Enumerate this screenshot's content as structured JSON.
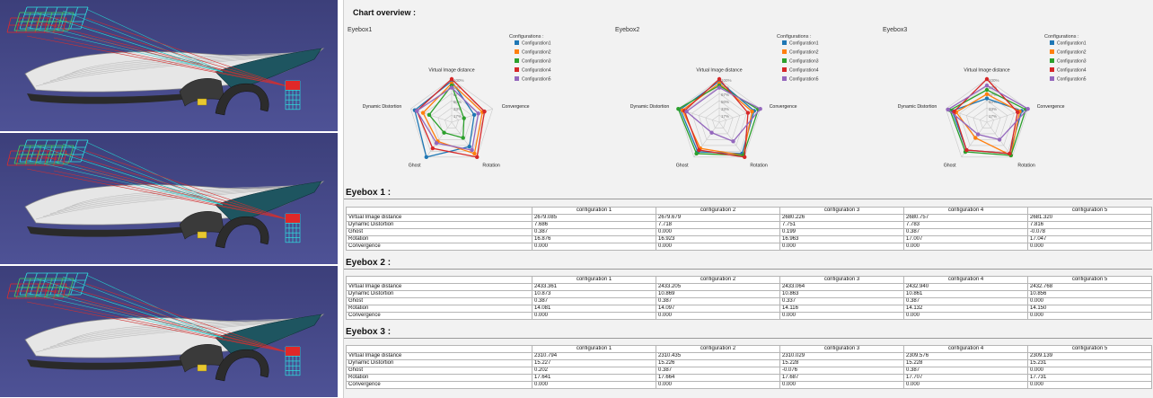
{
  "report": {
    "title": "Chart overview :",
    "config_heading": "Configurations :",
    "configurations": [
      "Configuration1",
      "Configuration2",
      "Configuration3",
      "Configuration4",
      "Configuration5"
    ],
    "axes": [
      "Virtual Image distance",
      "Convergence",
      "Rotation",
      "Ghost",
      "Dynamic Distortion"
    ],
    "ring_labels": [
      "100%",
      "83%",
      "67%",
      "50%",
      "33%",
      "17%"
    ]
  },
  "colors": {
    "series": [
      "#1f77b4",
      "#ff7f0e",
      "#2ca02c",
      "#d62728",
      "#9467bd"
    ]
  },
  "chart_data": [
    {
      "type": "radar",
      "title": "Eyebox1",
      "axes": [
        "Virtual Image distance",
        "Convergence",
        "Rotation",
        "Ghost",
        "Dynamic Distortion"
      ],
      "series": [
        {
          "name": "Configuration1",
          "values": [
            0.95,
            0.55,
            0.7,
            1.0,
            0.9
          ]
        },
        {
          "name": "Configuration2",
          "values": [
            0.9,
            0.75,
            0.9,
            0.55,
            0.7
          ]
        },
        {
          "name": "Configuration3",
          "values": [
            0.85,
            0.3,
            0.45,
            0.3,
            0.55
          ]
        },
        {
          "name": "Configuration4",
          "values": [
            1.0,
            0.8,
            1.0,
            0.75,
            0.85
          ]
        },
        {
          "name": "Configuration5",
          "values": [
            0.8,
            0.65,
            0.8,
            0.6,
            0.85
          ]
        }
      ]
    },
    {
      "type": "radar",
      "title": "Eyebox2",
      "axes": [
        "Virtual Image distance",
        "Convergence",
        "Rotation",
        "Ghost",
        "Dynamic Distortion"
      ],
      "series": [
        {
          "name": "Configuration1",
          "values": [
            0.95,
            0.85,
            0.9,
            0.85,
            0.95
          ]
        },
        {
          "name": "Configuration2",
          "values": [
            0.9,
            0.8,
            0.95,
            0.75,
            0.9
          ]
        },
        {
          "name": "Configuration3",
          "values": [
            0.85,
            0.95,
            0.95,
            0.9,
            1.0
          ]
        },
        {
          "name": "Configuration4",
          "values": [
            1.0,
            0.7,
            1.0,
            0.8,
            0.85
          ]
        },
        {
          "name": "Configuration5",
          "values": [
            0.8,
            1.0,
            0.55,
            0.3,
            0.8
          ]
        }
      ]
    },
    {
      "type": "radar",
      "title": "Eyebox3",
      "axes": [
        "Virtual Image distance",
        "Convergence",
        "Rotation",
        "Ghost",
        "Dynamic Distortion"
      ],
      "series": [
        {
          "name": "Configuration1",
          "values": [
            0.55,
            0.85,
            0.9,
            0.8,
            0.85
          ]
        },
        {
          "name": "Configuration2",
          "values": [
            0.65,
            0.8,
            0.95,
            0.45,
            0.75
          ]
        },
        {
          "name": "Configuration3",
          "values": [
            0.75,
            0.95,
            0.95,
            0.85,
            0.9
          ]
        },
        {
          "name": "Configuration4",
          "values": [
            1.0,
            0.75,
            0.9,
            0.8,
            0.8
          ]
        },
        {
          "name": "Configuration5",
          "values": [
            0.85,
            1.0,
            0.5,
            0.35,
            0.95
          ]
        }
      ]
    }
  ],
  "tables": [
    {
      "title": "Eyebox 1 :",
      "headers": [
        "configuration 1",
        "configuration 2",
        "configuration 3",
        "configuration 4",
        "configuration 5"
      ],
      "rows": [
        {
          "label": "Virtual Image distance",
          "cells": [
            "2679.085",
            "2679.679",
            "2680.226",
            "2680.757",
            "2681.320"
          ]
        },
        {
          "label": "Dynamic Distortion",
          "cells": [
            "7.686",
            "7.718",
            "7.751",
            "7.783",
            "7.816"
          ]
        },
        {
          "label": "Ghost",
          "cells": [
            "0.387",
            "0.000",
            "0.199",
            "0.387",
            "-0.078"
          ]
        },
        {
          "label": "Rotation",
          "cells": [
            "16.876",
            "16.923",
            "16.963",
            "17.007",
            "17.047"
          ]
        },
        {
          "label": "Convergence",
          "cells": [
            "0.000",
            "0.000",
            "0.000",
            "0.000",
            "0.000"
          ]
        }
      ]
    },
    {
      "title": "Eyebox 2 :",
      "headers": [
        "configuration 1",
        "configuration 2",
        "configuration 3",
        "configuration 4",
        "configuration 5"
      ],
      "rows": [
        {
          "label": "Virtual Image distance",
          "cells": [
            "2433.361",
            "2433.205",
            "2433.064",
            "2432.940",
            "2432.768"
          ]
        },
        {
          "label": "Dynamic Distortion",
          "cells": [
            "10.873",
            "10.869",
            "10.863",
            "10.861",
            "10.856"
          ]
        },
        {
          "label": "Ghost",
          "cells": [
            "0.387",
            "0.387",
            "0.337",
            "0.387",
            "0.000"
          ]
        },
        {
          "label": "Rotation",
          "cells": [
            "14.081",
            "14.097",
            "14.116",
            "14.132",
            "14.150"
          ]
        },
        {
          "label": "Convergence",
          "cells": [
            "0.000",
            "0.000",
            "0.000",
            "0.000",
            "0.000"
          ]
        }
      ]
    },
    {
      "title": "Eyebox 3 :",
      "headers": [
        "configuration 1",
        "configuration 2",
        "configuration 3",
        "configuration 4",
        "configuration 5"
      ],
      "rows": [
        {
          "label": "Virtual Image distance",
          "cells": [
            "2310.794",
            "2310.435",
            "2310.029",
            "2309.576",
            "2309.139"
          ]
        },
        {
          "label": "Dynamic Distortion",
          "cells": [
            "15.227",
            "15.226",
            "15.228",
            "15.228",
            "15.231"
          ]
        },
        {
          "label": "Ghost",
          "cells": [
            "0.202",
            "0.387",
            "-0.076",
            "0.387",
            "0.000"
          ]
        },
        {
          "label": "Rotation",
          "cells": [
            "17.641",
            "17.664",
            "17.687",
            "17.707",
            "17.731"
          ]
        },
        {
          "label": "Convergence",
          "cells": [
            "0.000",
            "0.000",
            "0.000",
            "0.000",
            "0.000"
          ]
        }
      ]
    }
  ]
}
